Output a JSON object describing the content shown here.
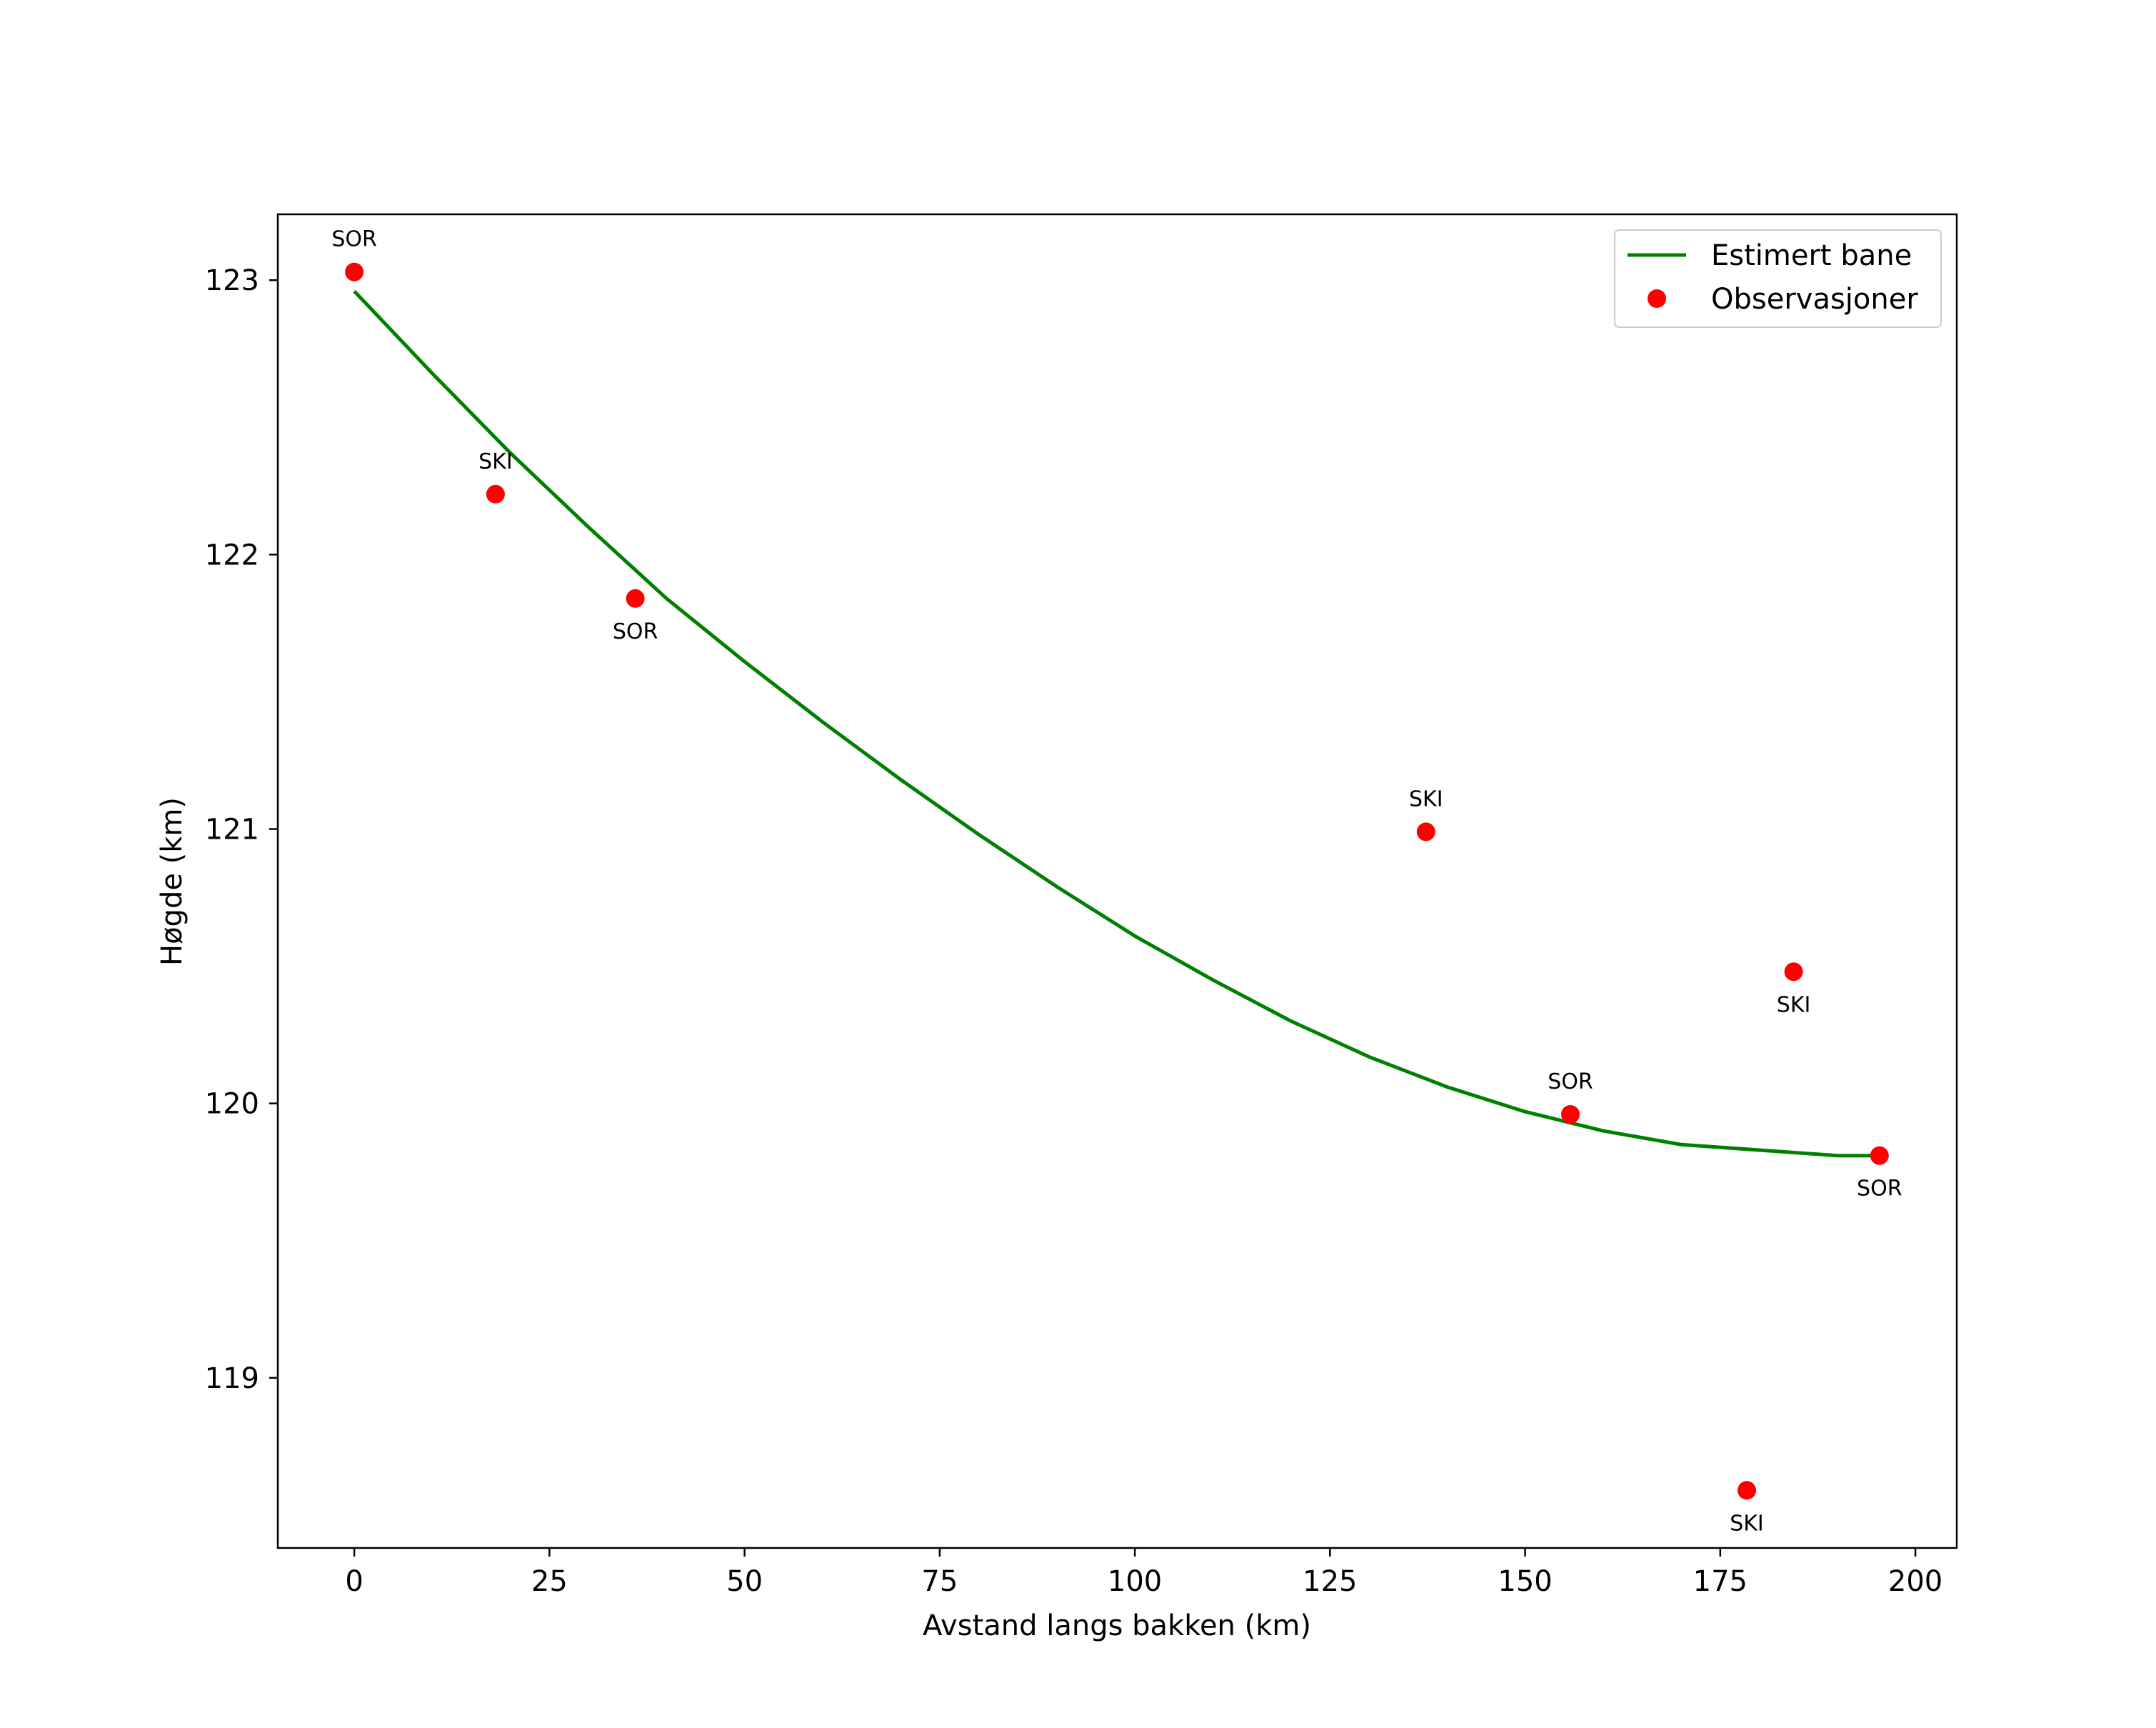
{
  "chart_data": {
    "type": "scatter",
    "title": "",
    "xlabel": "Avstand langs bakken (km)",
    "ylabel": "Høgde (km)",
    "xlim": [
      -9.8,
      205.3
    ],
    "ylim": [
      118.38,
      123.24
    ],
    "xticks": [
      0,
      25,
      50,
      75,
      100,
      125,
      150,
      175,
      200
    ],
    "yticks": [
      119,
      120,
      121,
      122,
      123
    ],
    "grid": false,
    "legend_position": "top-right",
    "colors": {
      "line": "#008000",
      "points": "#ff0000",
      "axes": "#000000"
    },
    "series": [
      {
        "name": "Estimert bane",
        "kind": "line",
        "x": [
          0,
          10,
          20,
          30,
          40,
          50,
          60,
          70,
          80,
          90,
          100,
          110,
          120,
          130,
          140,
          150,
          160,
          170,
          180,
          190,
          195.5
        ],
        "y": [
          122.96,
          122.66,
          122.37,
          122.1,
          121.84,
          121.61,
          121.39,
          121.18,
          120.98,
          120.79,
          120.61,
          120.45,
          120.3,
          120.17,
          120.06,
          119.97,
          119.9,
          119.85,
          119.83,
          119.81,
          119.81
        ]
      },
      {
        "name": "Observasjoner",
        "kind": "scatter",
        "points": [
          {
            "x": 0.0,
            "y": 123.03,
            "label": "SOR",
            "label_pos": "above"
          },
          {
            "x": 18.1,
            "y": 122.22,
            "label": "SKI",
            "label_pos": "above"
          },
          {
            "x": 36.0,
            "y": 121.84,
            "label": "SOR",
            "label_pos": "below"
          },
          {
            "x": 137.3,
            "y": 120.99,
            "label": "SKI",
            "label_pos": "above"
          },
          {
            "x": 155.8,
            "y": 119.96,
            "label": "SOR",
            "label_pos": "above"
          },
          {
            "x": 178.4,
            "y": 118.59,
            "label": "SKI",
            "label_pos": "below"
          },
          {
            "x": 184.4,
            "y": 120.48,
            "label": "SKI",
            "label_pos": "below"
          },
          {
            "x": 195.4,
            "y": 119.81,
            "label": "SOR",
            "label_pos": "below"
          }
        ]
      }
    ]
  }
}
